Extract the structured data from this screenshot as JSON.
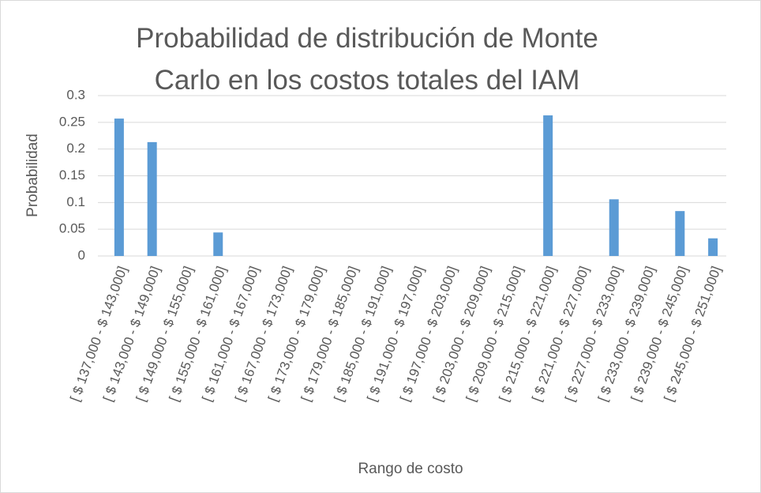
{
  "chart_data": {
    "type": "bar",
    "title": "Probabilidad de distribución de Monte Carlo en los costos totales del IAM",
    "x_label": "Rango de costo",
    "y_label": "Probabilidad",
    "categories": [
      "[ $ 137,000 - $ 143,000]",
      "[ $ 143,000 - $ 149,000]",
      "[ $ 149,000 - $ 155,000]",
      "[ $ 155,000 - $ 161,000]",
      "[ $ 161,000 - $ 167,000]",
      "[ $ 167,000 - $ 173,000]",
      "[ $ 173,000 - $ 179,000]",
      "[ $ 179,000 - $ 185,000]",
      "[ $ 185,000 - $ 191,000]",
      "[ $ 191,000 - $ 197,000]",
      "[ $ 197,000 - $ 203,000]",
      "[ $ 203,000 - $ 209,000]",
      "[ $ 209,000 - $ 215,000]",
      "[ $ 215,000 - $ 221,000]",
      "[ $ 221,000 - $ 227,000]",
      "[ $ 227,000 - $ 233,000]",
      "[ $ 233,000 - $ 239,000]",
      "[ $ 239,000 - $ 245,000]",
      "[ $ 245,000 - $ 251,000]"
    ],
    "values": [
      0.257,
      0.213,
      0,
      0.044,
      0,
      0,
      0,
      0,
      0,
      0,
      0,
      0,
      0,
      0.263,
      0,
      0.106,
      0,
      0.084,
      0.033
    ],
    "color": "#5b9bd5",
    "ylim": [
      0,
      0.3
    ],
    "yticks": [
      0,
      0.05,
      0.1,
      0.15,
      0.2,
      0.25,
      0.3
    ],
    "grid": true
  }
}
